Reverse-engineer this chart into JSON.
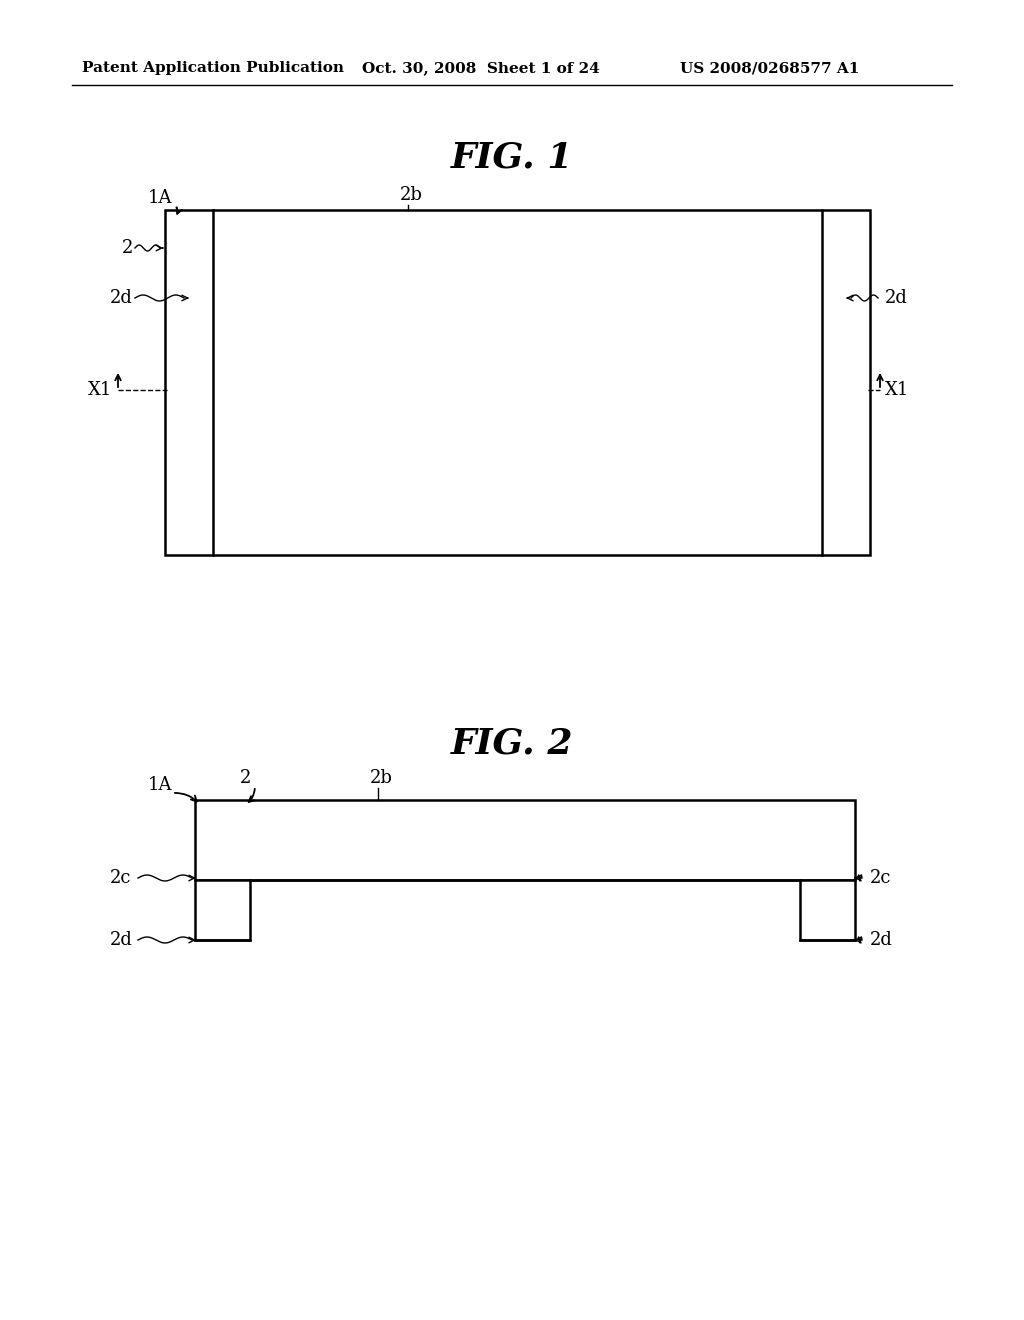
{
  "bg_color": "#ffffff",
  "header_left": "Patent Application Publication",
  "header_mid": "Oct. 30, 2008  Sheet 1 of 24",
  "header_right": "US 2008/0268577 A1",
  "fig1_title": "FIG. 1",
  "fig2_title": "FIG. 2",
  "line_color": "#000000",
  "text_color": "#000000"
}
